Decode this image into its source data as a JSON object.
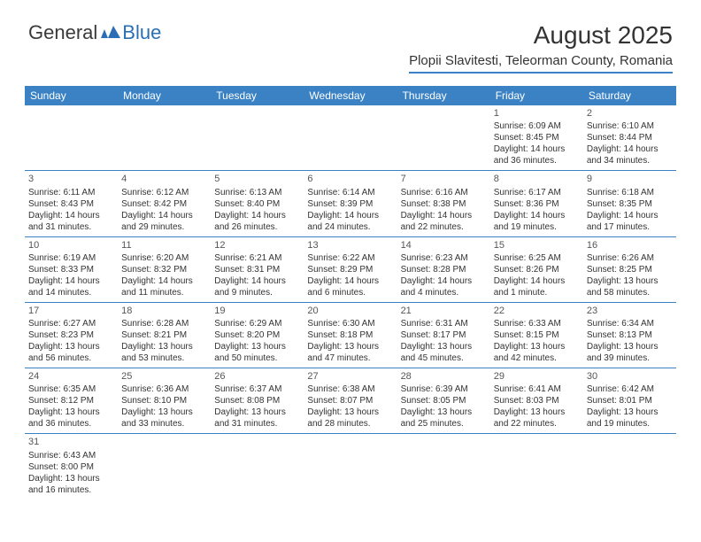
{
  "logo": {
    "general": "General",
    "blue": "Blue"
  },
  "header": {
    "month_title": "August 2025",
    "location": "Plopii Slavitesti, Teleorman County, Romania"
  },
  "colors": {
    "header_bg": "#3b82c4",
    "header_text": "#ffffff",
    "border": "#3b82c4",
    "text": "#333333",
    "logo_gray": "#3a3a3a",
    "logo_blue": "#2a6fb5"
  },
  "days_of_week": [
    "Sunday",
    "Monday",
    "Tuesday",
    "Wednesday",
    "Thursday",
    "Friday",
    "Saturday"
  ],
  "weeks": [
    [
      null,
      null,
      null,
      null,
      null,
      {
        "n": "1",
        "sr": "Sunrise: 6:09 AM",
        "ss": "Sunset: 8:45 PM",
        "dl": "Daylight: 14 hours and 36 minutes."
      },
      {
        "n": "2",
        "sr": "Sunrise: 6:10 AM",
        "ss": "Sunset: 8:44 PM",
        "dl": "Daylight: 14 hours and 34 minutes."
      }
    ],
    [
      {
        "n": "3",
        "sr": "Sunrise: 6:11 AM",
        "ss": "Sunset: 8:43 PM",
        "dl": "Daylight: 14 hours and 31 minutes."
      },
      {
        "n": "4",
        "sr": "Sunrise: 6:12 AM",
        "ss": "Sunset: 8:42 PM",
        "dl": "Daylight: 14 hours and 29 minutes."
      },
      {
        "n": "5",
        "sr": "Sunrise: 6:13 AM",
        "ss": "Sunset: 8:40 PM",
        "dl": "Daylight: 14 hours and 26 minutes."
      },
      {
        "n": "6",
        "sr": "Sunrise: 6:14 AM",
        "ss": "Sunset: 8:39 PM",
        "dl": "Daylight: 14 hours and 24 minutes."
      },
      {
        "n": "7",
        "sr": "Sunrise: 6:16 AM",
        "ss": "Sunset: 8:38 PM",
        "dl": "Daylight: 14 hours and 22 minutes."
      },
      {
        "n": "8",
        "sr": "Sunrise: 6:17 AM",
        "ss": "Sunset: 8:36 PM",
        "dl": "Daylight: 14 hours and 19 minutes."
      },
      {
        "n": "9",
        "sr": "Sunrise: 6:18 AM",
        "ss": "Sunset: 8:35 PM",
        "dl": "Daylight: 14 hours and 17 minutes."
      }
    ],
    [
      {
        "n": "10",
        "sr": "Sunrise: 6:19 AM",
        "ss": "Sunset: 8:33 PM",
        "dl": "Daylight: 14 hours and 14 minutes."
      },
      {
        "n": "11",
        "sr": "Sunrise: 6:20 AM",
        "ss": "Sunset: 8:32 PM",
        "dl": "Daylight: 14 hours and 11 minutes."
      },
      {
        "n": "12",
        "sr": "Sunrise: 6:21 AM",
        "ss": "Sunset: 8:31 PM",
        "dl": "Daylight: 14 hours and 9 minutes."
      },
      {
        "n": "13",
        "sr": "Sunrise: 6:22 AM",
        "ss": "Sunset: 8:29 PM",
        "dl": "Daylight: 14 hours and 6 minutes."
      },
      {
        "n": "14",
        "sr": "Sunrise: 6:23 AM",
        "ss": "Sunset: 8:28 PM",
        "dl": "Daylight: 14 hours and 4 minutes."
      },
      {
        "n": "15",
        "sr": "Sunrise: 6:25 AM",
        "ss": "Sunset: 8:26 PM",
        "dl": "Daylight: 14 hours and 1 minute."
      },
      {
        "n": "16",
        "sr": "Sunrise: 6:26 AM",
        "ss": "Sunset: 8:25 PM",
        "dl": "Daylight: 13 hours and 58 minutes."
      }
    ],
    [
      {
        "n": "17",
        "sr": "Sunrise: 6:27 AM",
        "ss": "Sunset: 8:23 PM",
        "dl": "Daylight: 13 hours and 56 minutes."
      },
      {
        "n": "18",
        "sr": "Sunrise: 6:28 AM",
        "ss": "Sunset: 8:21 PM",
        "dl": "Daylight: 13 hours and 53 minutes."
      },
      {
        "n": "19",
        "sr": "Sunrise: 6:29 AM",
        "ss": "Sunset: 8:20 PM",
        "dl": "Daylight: 13 hours and 50 minutes."
      },
      {
        "n": "20",
        "sr": "Sunrise: 6:30 AM",
        "ss": "Sunset: 8:18 PM",
        "dl": "Daylight: 13 hours and 47 minutes."
      },
      {
        "n": "21",
        "sr": "Sunrise: 6:31 AM",
        "ss": "Sunset: 8:17 PM",
        "dl": "Daylight: 13 hours and 45 minutes."
      },
      {
        "n": "22",
        "sr": "Sunrise: 6:33 AM",
        "ss": "Sunset: 8:15 PM",
        "dl": "Daylight: 13 hours and 42 minutes."
      },
      {
        "n": "23",
        "sr": "Sunrise: 6:34 AM",
        "ss": "Sunset: 8:13 PM",
        "dl": "Daylight: 13 hours and 39 minutes."
      }
    ],
    [
      {
        "n": "24",
        "sr": "Sunrise: 6:35 AM",
        "ss": "Sunset: 8:12 PM",
        "dl": "Daylight: 13 hours and 36 minutes."
      },
      {
        "n": "25",
        "sr": "Sunrise: 6:36 AM",
        "ss": "Sunset: 8:10 PM",
        "dl": "Daylight: 13 hours and 33 minutes."
      },
      {
        "n": "26",
        "sr": "Sunrise: 6:37 AM",
        "ss": "Sunset: 8:08 PM",
        "dl": "Daylight: 13 hours and 31 minutes."
      },
      {
        "n": "27",
        "sr": "Sunrise: 6:38 AM",
        "ss": "Sunset: 8:07 PM",
        "dl": "Daylight: 13 hours and 28 minutes."
      },
      {
        "n": "28",
        "sr": "Sunrise: 6:39 AM",
        "ss": "Sunset: 8:05 PM",
        "dl": "Daylight: 13 hours and 25 minutes."
      },
      {
        "n": "29",
        "sr": "Sunrise: 6:41 AM",
        "ss": "Sunset: 8:03 PM",
        "dl": "Daylight: 13 hours and 22 minutes."
      },
      {
        "n": "30",
        "sr": "Sunrise: 6:42 AM",
        "ss": "Sunset: 8:01 PM",
        "dl": "Daylight: 13 hours and 19 minutes."
      }
    ],
    [
      {
        "n": "31",
        "sr": "Sunrise: 6:43 AM",
        "ss": "Sunset: 8:00 PM",
        "dl": "Daylight: 13 hours and 16 minutes."
      },
      null,
      null,
      null,
      null,
      null,
      null
    ]
  ]
}
